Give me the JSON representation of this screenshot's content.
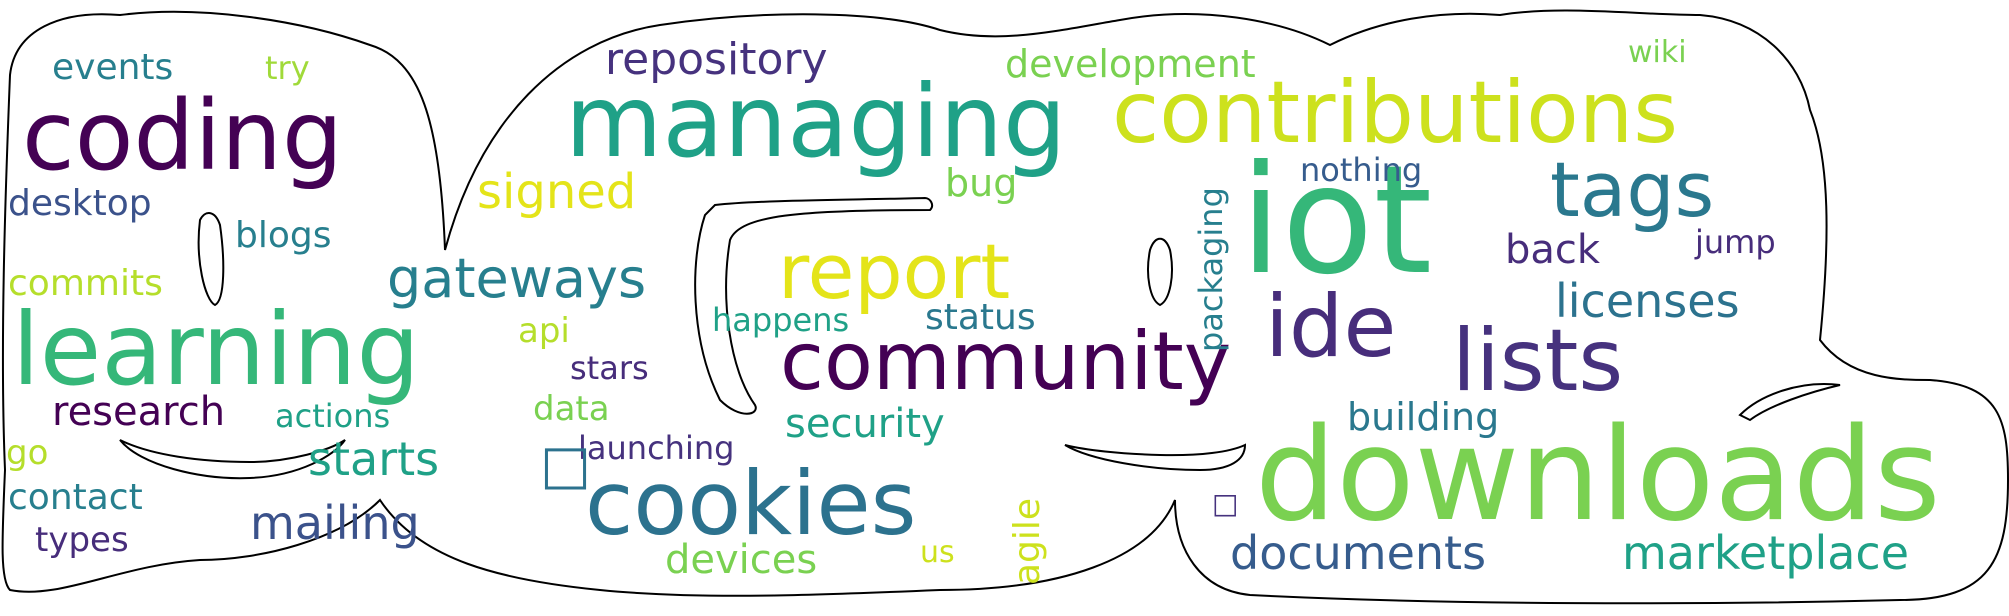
{
  "cloud": {
    "words": {
      "managing": "managing",
      "contributions": "contributions",
      "iot": "iot",
      "coding": "coding",
      "learning": "learning",
      "downloads": "downloads",
      "community": "community",
      "cookies": "cookies",
      "report": "report",
      "ide": "ide",
      "lists": "lists",
      "tags": "tags",
      "gateways": "gateways",
      "repository": "repository",
      "development": "development",
      "events": "events",
      "try": "try",
      "wiki": "wiki",
      "desktop": "desktop",
      "blogs": "blogs",
      "commits": "commits",
      "signed": "signed",
      "bug": "bug",
      "nothing": "nothing",
      "back": "back",
      "jump": "jump",
      "licenses": "licenses",
      "packaging": "packaging",
      "happens": "happens",
      "status": "status",
      "api": "api",
      "stars": "stars",
      "research": "research",
      "actions": "actions",
      "data": "data",
      "security": "security",
      "building": "building",
      "go": "go",
      "starts": "starts",
      "launching": "launching",
      "contact": "contact",
      "mailing": "mailing",
      "types": "types",
      "devices": "devices",
      "us": "us",
      "agile": "agile",
      "documents": "documents",
      "marketplace": "marketplace",
      "glyph_a": "□",
      "glyph_b": "□"
    },
    "colors": {
      "dark_purple": "#440154",
      "indigo": "#46327e",
      "slate": "#365c8d",
      "teal_blue": "#277f8e",
      "teal": "#1fa187",
      "green": "#4ac16d",
      "lime": "#a0da39",
      "yellow": "#e4e419"
    }
  }
}
